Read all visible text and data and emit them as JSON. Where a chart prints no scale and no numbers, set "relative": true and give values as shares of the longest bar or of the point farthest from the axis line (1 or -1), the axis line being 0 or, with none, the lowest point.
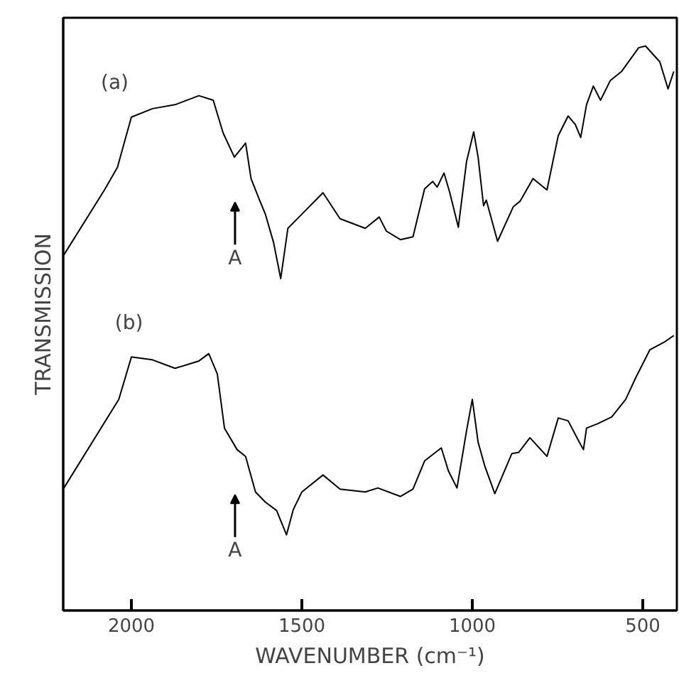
{
  "chart_data": {
    "type": "line",
    "relative": true,
    "xlabel": "WAVENUMBER (cm⁻¹)",
    "ylabel": "TRANSMISSION",
    "xlim": [
      2200,
      400
    ],
    "xticks": [
      2000,
      1500,
      1000,
      500
    ],
    "grid": false,
    "legend": false,
    "marker": "none",
    "line_style": "solid",
    "annotations": [
      "A",
      "A"
    ],
    "series": [
      {
        "name": "(a)",
        "color": "#000000",
        "x": [
          2198,
          2079,
          2041,
          2000,
          1938,
          1872,
          1802,
          1760,
          1731,
          1698,
          1665,
          1649,
          1624,
          1607,
          1583,
          1562,
          1541,
          1500,
          1438,
          1388,
          1314,
          1273,
          1252,
          1211,
          1174,
          1140,
          1116,
          1103,
          1083,
          1066,
          1041,
          1017,
          996,
          983,
          967,
          959,
          926,
          880,
          860,
          822,
          781,
          748,
          719,
          698,
          682,
          665,
          645,
          624,
          595,
          562,
          512,
          492,
          450,
          426,
          409
        ],
        "values": [
          0.63,
          0.745,
          0.785,
          0.874,
          0.889,
          0.896,
          0.912,
          0.904,
          0.846,
          0.803,
          0.828,
          0.765,
          0.727,
          0.702,
          0.652,
          0.588,
          0.677,
          0.702,
          0.74,
          0.694,
          0.677,
          0.697,
          0.672,
          0.657,
          0.662,
          0.747,
          0.76,
          0.75,
          0.775,
          0.74,
          0.679,
          0.795,
          0.848,
          0.803,
          0.717,
          0.727,
          0.654,
          0.715,
          0.725,
          0.765,
          0.745,
          0.841,
          0.876,
          0.861,
          0.838,
          0.896,
          0.929,
          0.904,
          0.939,
          0.955,
          0.997,
          1.0,
          0.972,
          0.924,
          0.955
        ]
      },
      {
        "name": "(b)",
        "color": "#000000",
        "x": [
          2198,
          2037,
          2000,
          1938,
          1872,
          1802,
          1773,
          1748,
          1727,
          1690,
          1665,
          1636,
          1607,
          1574,
          1545,
          1525,
          1500,
          1438,
          1388,
          1314,
          1277,
          1211,
          1174,
          1140,
          1091,
          1070,
          1045,
          1017,
          1000,
          983,
          963,
          934,
          884,
          864,
          831,
          781,
          748,
          719,
          686,
          674,
          665,
          632,
          591,
          550,
          521,
          479,
          438,
          409
        ],
        "values": [
          0.217,
          0.374,
          0.449,
          0.444,
          0.429,
          0.442,
          0.455,
          0.419,
          0.323,
          0.285,
          0.273,
          0.21,
          0.192,
          0.177,
          0.134,
          0.179,
          0.21,
          0.24,
          0.215,
          0.21,
          0.217,
          0.202,
          0.215,
          0.265,
          0.288,
          0.247,
          0.217,
          0.318,
          0.374,
          0.298,
          0.255,
          0.207,
          0.278,
          0.28,
          0.306,
          0.273,
          0.341,
          0.336,
          0.298,
          0.285,
          0.323,
          0.331,
          0.343,
          0.374,
          0.412,
          0.462,
          0.475,
          0.487
        ]
      }
    ]
  }
}
